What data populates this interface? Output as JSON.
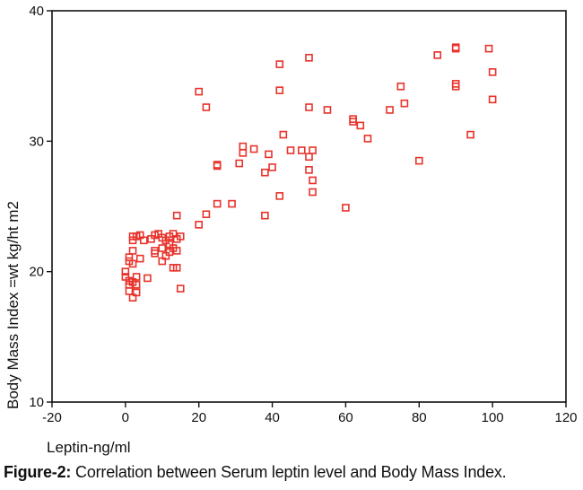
{
  "chart_data": {
    "type": "scatter",
    "xlabel": "Leptin-ng/ml",
    "ylabel": "Body Mass Index =wt kg/ht m2",
    "xlim": [
      -20,
      120
    ],
    "ylim": [
      10,
      40
    ],
    "xticks": [
      "-20",
      "0",
      "20",
      "40",
      "60",
      "80",
      "100",
      "120"
    ],
    "yticks": [
      "10",
      "20",
      "30",
      "40"
    ],
    "grid": false,
    "marker": "open-square",
    "marker_color": "#e8322a",
    "points": [
      [
        0,
        20.0
      ],
      [
        0,
        19.6
      ],
      [
        1,
        19.3
      ],
      [
        1,
        20.8
      ],
      [
        1,
        21.1
      ],
      [
        1,
        19.0
      ],
      [
        1,
        18.5
      ],
      [
        2,
        18.0
      ],
      [
        2,
        22.7
      ],
      [
        2,
        22.4
      ],
      [
        2,
        21.6
      ],
      [
        2,
        20.6
      ],
      [
        2,
        19.2
      ],
      [
        3,
        19.0
      ],
      [
        3,
        18.4
      ],
      [
        3,
        19.6
      ],
      [
        3,
        22.7
      ],
      [
        4,
        22.8
      ],
      [
        4,
        21.0
      ],
      [
        5,
        22.4
      ],
      [
        6,
        19.5
      ],
      [
        7,
        22.5
      ],
      [
        8,
        21.6
      ],
      [
        8,
        21.4
      ],
      [
        8,
        22.8
      ],
      [
        9,
        22.9
      ],
      [
        10,
        22.6
      ],
      [
        10,
        21.8
      ],
      [
        10,
        20.8
      ],
      [
        11,
        22.4
      ],
      [
        11,
        21.2
      ],
      [
        12,
        22.7
      ],
      [
        12,
        22.1
      ],
      [
        12,
        21.5
      ],
      [
        13,
        22.9
      ],
      [
        13,
        21.8
      ],
      [
        13,
        20.3
      ],
      [
        14,
        22.5
      ],
      [
        14,
        21.6
      ],
      [
        14,
        20.3
      ],
      [
        14,
        24.3
      ],
      [
        15,
        22.7
      ],
      [
        15,
        18.7
      ],
      [
        20,
        33.8
      ],
      [
        20,
        23.6
      ],
      [
        22,
        32.6
      ],
      [
        22,
        24.4
      ],
      [
        25,
        28.2
      ],
      [
        25,
        28.1
      ],
      [
        25,
        25.2
      ],
      [
        29,
        25.2
      ],
      [
        31,
        28.3
      ],
      [
        32,
        29.6
      ],
      [
        32,
        29.1
      ],
      [
        35,
        29.4
      ],
      [
        38,
        27.6
      ],
      [
        38,
        24.3
      ],
      [
        39,
        29.0
      ],
      [
        40,
        28.0
      ],
      [
        42,
        35.9
      ],
      [
        42,
        33.9
      ],
      [
        42,
        25.8
      ],
      [
        43,
        30.5
      ],
      [
        45,
        29.3
      ],
      [
        48,
        29.3
      ],
      [
        50,
        36.4
      ],
      [
        50,
        32.6
      ],
      [
        50,
        28.8
      ],
      [
        50,
        27.8
      ],
      [
        51,
        29.3
      ],
      [
        51,
        27.0
      ],
      [
        51,
        26.1
      ],
      [
        55,
        32.4
      ],
      [
        60,
        24.9
      ],
      [
        62,
        31.7
      ],
      [
        62,
        31.5
      ],
      [
        64,
        31.2
      ],
      [
        66,
        30.2
      ],
      [
        72,
        32.4
      ],
      [
        75,
        34.2
      ],
      [
        76,
        32.9
      ],
      [
        80,
        28.5
      ],
      [
        85,
        36.6
      ],
      [
        90,
        37.1
      ],
      [
        90,
        37.2
      ],
      [
        90,
        34.4
      ],
      [
        90,
        34.2
      ],
      [
        94,
        30.5
      ],
      [
        99,
        37.1
      ],
      [
        100,
        35.3
      ],
      [
        100,
        33.2
      ]
    ]
  },
  "caption": {
    "label": "Figure-2:",
    "text": "Correlation between Serum leptin level and Body Mass Index."
  }
}
